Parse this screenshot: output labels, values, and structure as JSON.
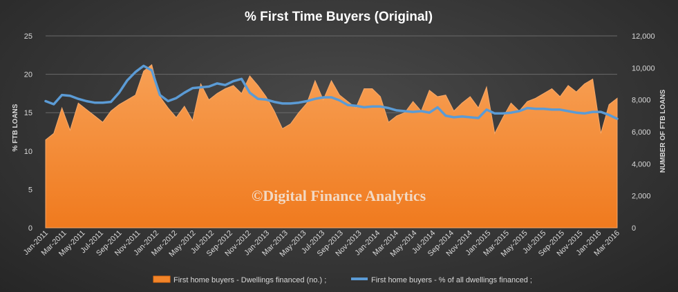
{
  "chart_data": {
    "type": "area",
    "title": "% First Time Buyers (Original)",
    "ylabel_left": "% FTB LOANS",
    "ylabel_right": "NUMBER OF FTB LOANS",
    "ylim_left": [
      0,
      25
    ],
    "ylim_right": [
      0,
      12000
    ],
    "left_ticks": [
      "0",
      "5",
      "10",
      "15",
      "20",
      "25"
    ],
    "right_ticks": [
      "0",
      "2,000",
      "4,000",
      "6,000",
      "8,000",
      "10,000",
      "12,000"
    ],
    "x_tick_labels": [
      "Jan-2011",
      "Mar-2011",
      "May-2011",
      "Jul-2011",
      "Sep-2011",
      "Nov-2011",
      "Jan-2012",
      "Mar-2012",
      "May-2012",
      "Jul-2012",
      "Sep-2012",
      "Nov-2012",
      "Jan-2013",
      "Mar-2013",
      "May-2013",
      "Jul-2013",
      "Sep-2013",
      "Nov-2013",
      "Jan-2014",
      "Mar-2014",
      "May-2014",
      "Jul-2014",
      "Sep-2014",
      "Nov-2014",
      "Jan-2015",
      "Mar-2015",
      "May-2015",
      "Jul-2015",
      "Sep-2015",
      "Nov-2015",
      "Jan-2016",
      "Mar-2016"
    ],
    "grid": true,
    "legend_position": "bottom",
    "watermark": "©Digital Finance Analytics",
    "series": [
      {
        "name": "First home buyers - Dwellings financed (no.) ;",
        "type": "area",
        "axis": "right",
        "color": "#f2852a",
        "values": [
          5500,
          5900,
          7500,
          6100,
          7800,
          7400,
          7000,
          6600,
          7300,
          7700,
          8000,
          8300,
          9800,
          10200,
          8200,
          7500,
          6900,
          7600,
          6700,
          9000,
          8000,
          8400,
          8700,
          8900,
          8400,
          9500,
          8900,
          8200,
          7300,
          6200,
          6500,
          7200,
          7800,
          9200,
          8000,
          9200,
          8300,
          7900,
          7500,
          8700,
          8700,
          8200,
          6600,
          7000,
          7200,
          7900,
          7300,
          8600,
          8200,
          8300,
          7300,
          7800,
          8200,
          7500,
          8800,
          5900,
          6900,
          7800,
          7300,
          7900,
          8100,
          8400,
          8700,
          8200,
          8900,
          8500,
          9000,
          9300,
          5900,
          7700,
          8100
        ]
      },
      {
        "name": "First home buyers - % of all dwellings financed ;",
        "type": "line",
        "axis": "left",
        "color": "#5b9bd5",
        "values": [
          16.5,
          16.1,
          17.3,
          17.2,
          16.8,
          16.5,
          16.3,
          16.3,
          16.4,
          17.6,
          19.2,
          20.3,
          21.1,
          20.5,
          17.3,
          16.5,
          16.9,
          17.6,
          18.2,
          18.3,
          18.4,
          18.8,
          18.6,
          19.1,
          19.4,
          17.6,
          16.8,
          16.7,
          16.4,
          16.2,
          16.2,
          16.3,
          16.5,
          16.8,
          17.0,
          17.0,
          16.6,
          16.0,
          15.9,
          15.7,
          15.8,
          15.8,
          15.6,
          15.3,
          15.2,
          15.1,
          15.2,
          15.0,
          15.7,
          14.6,
          14.4,
          14.5,
          14.4,
          14.3,
          15.4,
          14.9,
          14.9,
          15.0,
          15.2,
          15.6,
          15.5,
          15.5,
          15.4,
          15.4,
          15.2,
          15.0,
          14.9,
          15.1,
          15.1,
          14.7,
          14.2
        ]
      }
    ]
  }
}
